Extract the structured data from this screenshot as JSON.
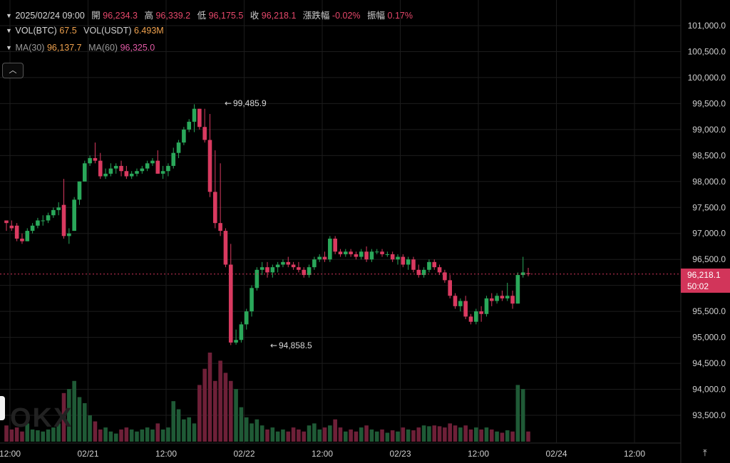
{
  "legend": {
    "datetime": "2025/02/24 09:00",
    "open_label": "開",
    "open": "96,234.3",
    "high_label": "高",
    "high": "96,339.2",
    "low_label": "低",
    "low": "96,175.5",
    "close_label": "收",
    "close": "96,218.1",
    "change_label": "漲跌幅",
    "change": "-0.02%",
    "amplitude_label": "振幅",
    "amplitude": "0.17%",
    "vol_btc_label": "VOL(BTC)",
    "vol_btc": "67.5",
    "vol_usdt_label": "VOL(USDT)",
    "vol_usdt": "6.493M",
    "ma30_label": "MA(30)",
    "ma30": "96,137.7",
    "ma60_label": "MA(60)",
    "ma60": "96,325.0"
  },
  "current_price": {
    "price": "96,218.1",
    "countdown": "50:02"
  },
  "annotations": {
    "high_mark": "99,485.9",
    "low_mark": "94,858.5"
  },
  "watermark": "OKX",
  "colors": {
    "up": "#2aa85a",
    "down": "#d93a60",
    "background": "#000000",
    "grid": "#1c1c1c"
  },
  "icons": {
    "collapse": "chevron-up-icon",
    "axis": "vertical-scale-icon"
  },
  "chart_data": {
    "type": "candlestick",
    "interval_hours": 2,
    "y_ticks": [
      "101,000.0",
      "100,500.0",
      "100,000.0",
      "99,500.0",
      "99,000.0",
      "98,500.0",
      "98,000.0",
      "97,500.0",
      "97,000.0",
      "96,500.0",
      "96,000.0",
      "95,500.0",
      "95,000.0",
      "94,500.0",
      "94,000.0",
      "93,500.0"
    ],
    "x_ticks": [
      "12:00",
      "02/21",
      "12:00",
      "02/22",
      "12:00",
      "02/23",
      "12:00",
      "02/24",
      "12:00"
    ],
    "ylim": [
      93050,
      101300
    ],
    "candles": [
      [
        97250,
        97250,
        97050,
        97200,
        40
      ],
      [
        97150,
        97250,
        97050,
        97100,
        30
      ],
      [
        97150,
        97200,
        96850,
        96900,
        35
      ],
      [
        96900,
        97000,
        96800,
        96850,
        25
      ],
      [
        96850,
        97100,
        96850,
        97050,
        45
      ],
      [
        97050,
        97200,
        97000,
        97150,
        30
      ],
      [
        97150,
        97300,
        97100,
        97250,
        28
      ],
      [
        97250,
        97350,
        97150,
        97250,
        25
      ],
      [
        97250,
        97400,
        97200,
        97350,
        30
      ],
      [
        97350,
        97500,
        97300,
        97450,
        35
      ],
      [
        97450,
        97600,
        97350,
        97500,
        45
      ],
      [
        97550,
        98050,
        96900,
        96950,
        120
      ],
      [
        96950,
        97100,
        96800,
        97000,
        130
      ],
      [
        97050,
        97700,
        97050,
        97650,
        150
      ],
      [
        97650,
        98000,
        97550,
        98000,
        110
      ],
      [
        98000,
        98400,
        98000,
        98350,
        95
      ],
      [
        98350,
        98500,
        98300,
        98450,
        65
      ],
      [
        98450,
        98750,
        98350,
        98400,
        50
      ],
      [
        98400,
        98550,
        98050,
        98100,
        30
      ],
      [
        98100,
        98250,
        98050,
        98150,
        35
      ],
      [
        98150,
        98350,
        98100,
        98250,
        25
      ],
      [
        98250,
        98350,
        98150,
        98300,
        20
      ],
      [
        98300,
        98400,
        98100,
        98200,
        30
      ],
      [
        98200,
        98300,
        98050,
        98100,
        35
      ],
      [
        98100,
        98200,
        98050,
        98150,
        30
      ],
      [
        98150,
        98250,
        98100,
        98200,
        25
      ],
      [
        98200,
        98300,
        98150,
        98250,
        30
      ],
      [
        98250,
        98400,
        98200,
        98350,
        35
      ],
      [
        98350,
        98450,
        98300,
        98400,
        30
      ],
      [
        98400,
        98600,
        98150,
        98150,
        45
      ],
      [
        98150,
        98300,
        98050,
        98200,
        30
      ],
      [
        98200,
        98350,
        98100,
        98300,
        35
      ],
      [
        98300,
        98650,
        98250,
        98550,
        100
      ],
      [
        98550,
        98800,
        98450,
        98750,
        80
      ],
      [
        98750,
        99050,
        98700,
        99000,
        55
      ],
      [
        99000,
        99200,
        98950,
        99150,
        60
      ],
      [
        99150,
        99486,
        98950,
        99400,
        45
      ],
      [
        99400,
        99400,
        99000,
        99050,
        140
      ],
      [
        99050,
        99400,
        98750,
        98800,
        180
      ],
      [
        98800,
        99300,
        97700,
        97800,
        220
      ],
      [
        97800,
        98600,
        97100,
        97200,
        150
      ],
      [
        97200,
        98350,
        96950,
        97050,
        200
      ],
      [
        97050,
        97100,
        96350,
        96400,
        170
      ],
      [
        96400,
        96800,
        94850,
        94900,
        150
      ],
      [
        94900,
        95150,
        94859,
        94950,
        130
      ],
      [
        94950,
        95300,
        94900,
        95250,
        85
      ],
      [
        95250,
        95550,
        95150,
        95500,
        60
      ],
      [
        95500,
        96000,
        95400,
        95950,
        45
      ],
      [
        95950,
        96350,
        95900,
        96300,
        55
      ],
      [
        96300,
        96450,
        96200,
        96350,
        40
      ],
      [
        96350,
        96450,
        96150,
        96250,
        30
      ],
      [
        96250,
        96400,
        96150,
        96350,
        35
      ],
      [
        96350,
        96450,
        96250,
        96400,
        25
      ],
      [
        96400,
        96500,
        96350,
        96450,
        30
      ],
      [
        96450,
        96550,
        96350,
        96400,
        25
      ],
      [
        96400,
        96450,
        96300,
        96350,
        35
      ],
      [
        96350,
        96450,
        96250,
        96300,
        30
      ],
      [
        96300,
        96350,
        96150,
        96200,
        25
      ],
      [
        96200,
        96400,
        96150,
        96350,
        40
      ],
      [
        96350,
        96550,
        96300,
        96500,
        45
      ],
      [
        96500,
        96600,
        96450,
        96550,
        30
      ],
      [
        96550,
        96650,
        96450,
        96500,
        35
      ],
      [
        96500,
        96950,
        96450,
        96900,
        40
      ],
      [
        96900,
        96950,
        96600,
        96650,
        55
      ],
      [
        96650,
        96700,
        96550,
        96600,
        35
      ],
      [
        96600,
        96700,
        96550,
        96650,
        25
      ],
      [
        96650,
        96700,
        96550,
        96600,
        30
      ],
      [
        96600,
        96650,
        96500,
        96550,
        25
      ],
      [
        96550,
        96700,
        96500,
        96650,
        35
      ],
      [
        96650,
        96750,
        96450,
        96500,
        40
      ],
      [
        96500,
        96700,
        96450,
        96650,
        30
      ],
      [
        96650,
        96700,
        96600,
        96650,
        25
      ],
      [
        96650,
        96700,
        96550,
        96600,
        30
      ],
      [
        96600,
        96650,
        96550,
        96600,
        22
      ],
      [
        96600,
        96650,
        96450,
        96500,
        28
      ],
      [
        96500,
        96600,
        96400,
        96550,
        25
      ],
      [
        96550,
        96600,
        96350,
        96400,
        35
      ],
      [
        96400,
        96550,
        96300,
        96500,
        30
      ],
      [
        96500,
        96550,
        96250,
        96300,
        28
      ],
      [
        96300,
        96400,
        96150,
        96200,
        35
      ],
      [
        96200,
        96350,
        96150,
        96300,
        40
      ],
      [
        96300,
        96500,
        96250,
        96450,
        38
      ],
      [
        96450,
        96500,
        96300,
        96350,
        40
      ],
      [
        96350,
        96400,
        96200,
        96250,
        38
      ],
      [
        96250,
        96300,
        96050,
        96100,
        35
      ],
      [
        96100,
        96200,
        95750,
        95800,
        45
      ],
      [
        95800,
        95850,
        95550,
        95600,
        40
      ],
      [
        95600,
        95750,
        95500,
        95700,
        35
      ],
      [
        95700,
        95800,
        95350,
        95400,
        40
      ],
      [
        95400,
        95450,
        95250,
        95300,
        30
      ],
      [
        95300,
        95550,
        95250,
        95500,
        35
      ],
      [
        95500,
        95600,
        95300,
        95450,
        30
      ],
      [
        95450,
        95800,
        95400,
        95750,
        35
      ],
      [
        95750,
        95850,
        95600,
        95700,
        30
      ],
      [
        95700,
        95850,
        95650,
        95800,
        25
      ],
      [
        95800,
        95900,
        95700,
        95750,
        22
      ],
      [
        95750,
        96050,
        95700,
        95800,
        28
      ],
      [
        95800,
        95900,
        95550,
        95650,
        25
      ],
      [
        95650,
        96250,
        95650,
        96200,
        140
      ],
      [
        96200,
        96550,
        96150,
        96250,
        130
      ],
      [
        96234,
        96339,
        96175,
        96218,
        25
      ]
    ]
  }
}
